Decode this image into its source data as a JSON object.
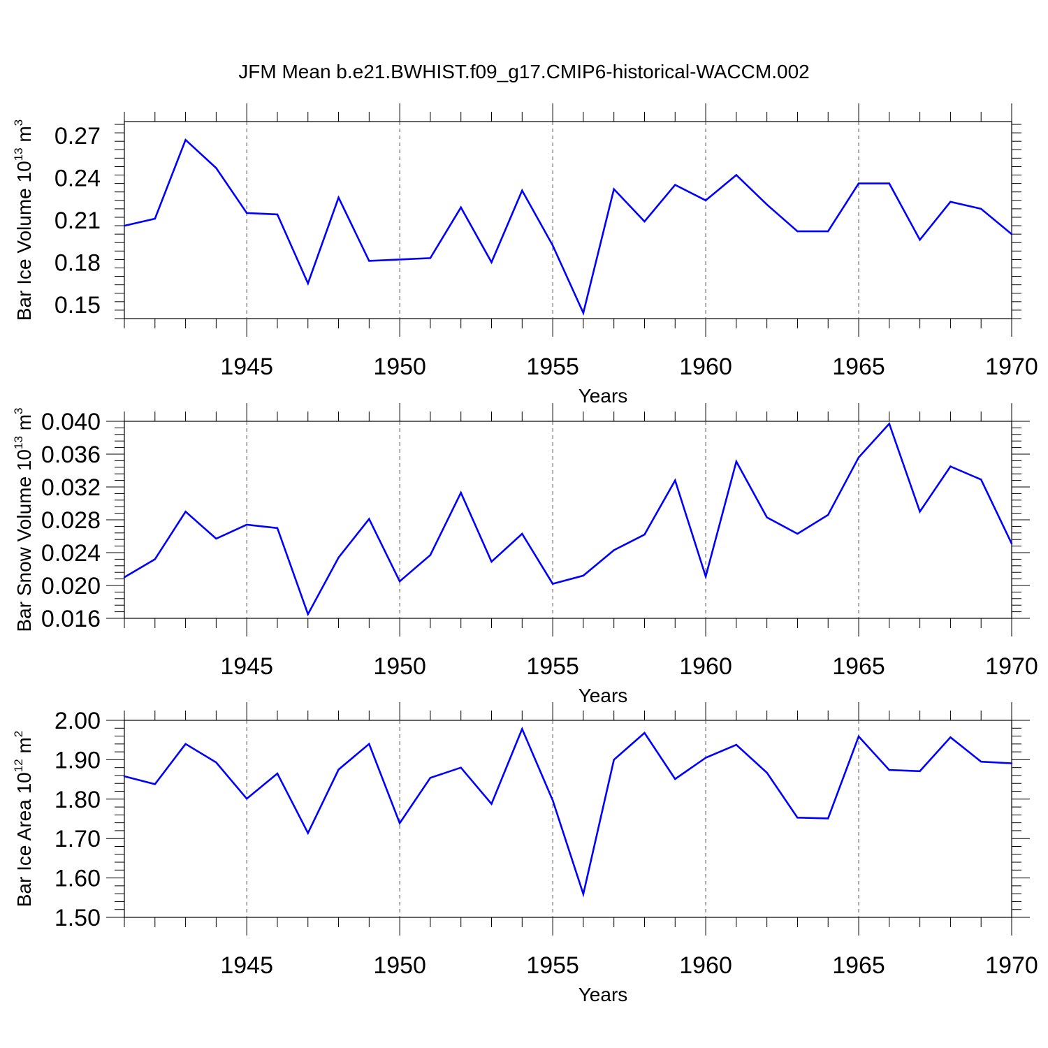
{
  "title": "JFM Mean b.e21.BWHIST.f09_g17.CMIP6-historical-WACCM.002",
  "line_color": "#0000ff",
  "chart_data": [
    {
      "type": "line",
      "ylabel": "Bar Ice Volume 10",
      "ylabel_exp": "13",
      "ylabel_unit": " m",
      "ylabel_unit_exp": "3",
      "xlabel": "Years",
      "xlim": [
        1941,
        1970
      ],
      "ylim": [
        0.14,
        0.28
      ],
      "yticks": [
        "0.15",
        "0.18",
        "0.21",
        "0.24",
        "0.27"
      ],
      "xticks": [
        "1945",
        "1950",
        "1955",
        "1960",
        "1965",
        "1970"
      ],
      "grid": "dashed vertical at major x ticks",
      "x": [
        1941,
        1942,
        1943,
        1944,
        1945,
        1946,
        1947,
        1948,
        1949,
        1950,
        1951,
        1952,
        1953,
        1954,
        1955,
        1956,
        1957,
        1958,
        1959,
        1960,
        1961,
        1962,
        1963,
        1964,
        1965,
        1966,
        1967,
        1968,
        1969,
        1970
      ],
      "values": [
        0.206,
        0.211,
        0.267,
        0.247,
        0.215,
        0.214,
        0.165,
        0.226,
        0.181,
        0.182,
        0.183,
        0.219,
        0.18,
        0.231,
        0.192,
        0.144,
        0.232,
        0.209,
        0.235,
        0.224,
        0.242,
        0.221,
        0.202,
        0.202,
        0.236,
        0.236,
        0.196,
        0.223,
        0.218,
        0.2
      ]
    },
    {
      "type": "line",
      "ylabel": "Bar Snow Volume 10",
      "ylabel_exp": "13",
      "ylabel_unit": " m",
      "ylabel_unit_exp": "3",
      "xlabel": "Years",
      "xlim": [
        1941,
        1970
      ],
      "ylim": [
        0.016,
        0.04
      ],
      "yticks": [
        "0.016",
        "0.020",
        "0.024",
        "0.028",
        "0.032",
        "0.036",
        "0.040"
      ],
      "xticks": [
        "1945",
        "1950",
        "1955",
        "1960",
        "1965",
        "1970"
      ],
      "grid": "dashed vertical at major x ticks",
      "x": [
        1941,
        1942,
        1943,
        1944,
        1945,
        1946,
        1947,
        1948,
        1949,
        1950,
        1951,
        1952,
        1953,
        1954,
        1955,
        1956,
        1957,
        1958,
        1959,
        1960,
        1961,
        1962,
        1963,
        1964,
        1965,
        1966,
        1967,
        1968,
        1969,
        1970
      ],
      "values": [
        0.021,
        0.0232,
        0.029,
        0.0257,
        0.0274,
        0.027,
        0.0165,
        0.0234,
        0.0281,
        0.0205,
        0.0237,
        0.0313,
        0.0229,
        0.0263,
        0.0202,
        0.0212,
        0.0243,
        0.0262,
        0.0328,
        0.0211,
        0.0351,
        0.0283,
        0.0263,
        0.0286,
        0.0356,
        0.0397,
        0.029,
        0.0345,
        0.0329,
        0.0251
      ]
    },
    {
      "type": "line",
      "ylabel": "Bar Ice Area 10",
      "ylabel_exp": "12",
      "ylabel_unit": " m",
      "ylabel_unit_exp": "2",
      "xlabel": "Years",
      "xlim": [
        1941,
        1970
      ],
      "ylim": [
        1.5,
        2.0
      ],
      "yticks": [
        "1.50",
        "1.60",
        "1.70",
        "1.80",
        "1.90",
        "2.00"
      ],
      "xticks": [
        "1945",
        "1950",
        "1955",
        "1960",
        "1965",
        "1970"
      ],
      "grid": "dashed vertical at major x ticks",
      "x": [
        1941,
        1942,
        1943,
        1944,
        1945,
        1946,
        1947,
        1948,
        1949,
        1950,
        1951,
        1952,
        1953,
        1954,
        1955,
        1956,
        1957,
        1958,
        1959,
        1960,
        1961,
        1962,
        1963,
        1964,
        1965,
        1966,
        1967,
        1968,
        1969,
        1970
      ],
      "values": [
        1.858,
        1.838,
        1.94,
        1.893,
        1.801,
        1.865,
        1.714,
        1.875,
        1.94,
        1.739,
        1.854,
        1.88,
        1.788,
        1.978,
        1.797,
        1.559,
        1.9,
        1.968,
        1.851,
        1.905,
        1.938,
        1.867,
        1.753,
        1.751,
        1.959,
        1.874,
        1.871,
        1.957,
        1.895,
        1.891
      ]
    }
  ]
}
